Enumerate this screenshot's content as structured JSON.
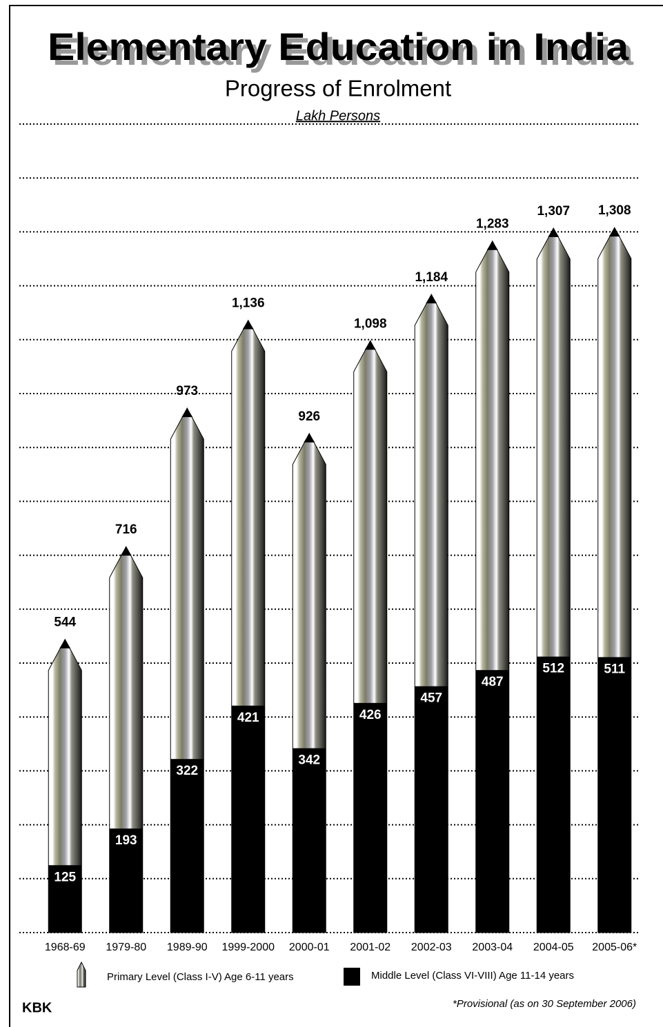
{
  "chart_data": {
    "type": "bar",
    "title": "Elementary Education in India",
    "subtitle": "Progress of Enrolment",
    "unit_label": "Lakh Persons",
    "categories": [
      "1968-69",
      "1979-80",
      "1989-90",
      "1999-2000",
      "2000-01",
      "2001-02",
      "2002-03",
      "2003-04",
      "2004-05",
      "2005-06*"
    ],
    "series": [
      {
        "name": "Primary Level (Class I-V) Age 6-11 years",
        "color": "#8c8c78",
        "values": [
          544,
          716,
          973,
          1136,
          926,
          1098,
          1184,
          1283,
          1307,
          1308
        ],
        "value_labels": [
          "544",
          "716",
          "973",
          "1,136",
          "926",
          "1,098",
          "1,184",
          "1,283",
          "1,307",
          "1,308"
        ]
      },
      {
        "name": "Middle Level (Class VI-VIII) Age 11-14 years",
        "color": "#000000",
        "values": [
          125,
          193,
          322,
          421,
          342,
          426,
          457,
          487,
          512,
          511
        ]
      }
    ],
    "ylim": [
      0,
      1500
    ],
    "yticks": [
      0,
      100,
      200,
      300,
      400,
      500,
      600,
      700,
      800,
      900,
      1000,
      1100,
      1200,
      1300,
      1400,
      1500
    ],
    "grid": true,
    "footnote": "*Provisional (as on 30 September 2006)",
    "credit": "KBK"
  }
}
